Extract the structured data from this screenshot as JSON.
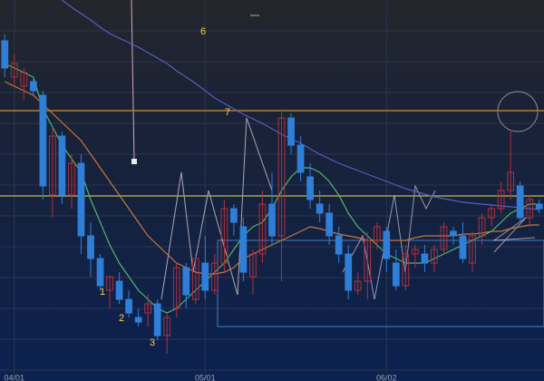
{
  "chart_data": {
    "type": "candlestick",
    "xlim": [
      -0.5,
      56.5
    ],
    "ylim": [
      0,
      420
    ],
    "xticks": [
      {
        "value": 1,
        "label": "04/01"
      },
      {
        "value": 21,
        "label": "05/01"
      },
      {
        "value": 40,
        "label": "06/02"
      }
    ],
    "grid": true,
    "up_color": "#b0303c",
    "down_color": "#2f7fd8",
    "candles": [
      [
        375,
        382,
        335,
        345
      ],
      [
        335,
        360,
        325,
        350
      ],
      [
        325,
        345,
        310,
        340
      ],
      [
        330,
        335,
        315,
        320
      ],
      [
        315,
        320,
        200,
        215
      ],
      [
        205,
        280,
        180,
        270
      ],
      [
        270,
        275,
        195,
        205
      ],
      [
        205,
        250,
        190,
        240
      ],
      [
        240,
        250,
        140,
        160
      ],
      [
        160,
        175,
        115,
        135
      ],
      [
        135,
        140,
        100,
        105
      ],
      [
        100,
        115,
        80,
        115
      ],
      [
        110,
        120,
        85,
        90
      ],
      [
        90,
        100,
        70,
        75
      ],
      [
        70,
        80,
        60,
        65
      ],
      [
        75,
        95,
        60,
        85
      ],
      [
        85,
        90,
        45,
        50
      ],
      [
        50,
        75,
        30,
        70
      ],
      [
        80,
        130,
        70,
        125
      ],
      [
        125,
        130,
        80,
        95
      ],
      [
        90,
        140,
        85,
        135
      ],
      [
        130,
        160,
        90,
        100
      ],
      [
        100,
        140,
        95,
        130
      ],
      [
        130,
        200,
        120,
        190
      ],
      [
        190,
        195,
        160,
        175
      ],
      [
        170,
        180,
        110,
        120
      ],
      [
        115,
        145,
        95,
        140
      ],
      [
        140,
        210,
        130,
        195
      ],
      [
        195,
        230,
        150,
        160
      ],
      [
        160,
        300,
        110,
        290
      ],
      [
        290,
        295,
        250,
        260
      ],
      [
        260,
        270,
        220,
        230
      ],
      [
        225,
        240,
        190,
        200
      ],
      [
        195,
        210,
        175,
        185
      ],
      [
        185,
        195,
        150,
        160
      ],
      [
        160,
        170,
        130,
        140
      ],
      [
        140,
        150,
        90,
        100
      ],
      [
        100,
        120,
        95,
        110
      ],
      [
        110,
        165,
        90,
        155
      ],
      [
        155,
        175,
        145,
        170
      ],
      [
        165,
        170,
        120,
        135
      ],
      [
        130,
        145,
        100,
        105
      ],
      [
        105,
        150,
        100,
        140
      ],
      [
        140,
        150,
        125,
        145
      ],
      [
        140,
        150,
        120,
        130
      ],
      [
        130,
        150,
        120,
        145
      ],
      [
        145,
        175,
        140,
        170
      ],
      [
        165,
        170,
        150,
        160
      ],
      [
        160,
        175,
        130,
        135
      ],
      [
        130,
        165,
        120,
        160
      ],
      [
        160,
        185,
        150,
        180
      ],
      [
        180,
        195,
        170,
        190
      ],
      [
        190,
        220,
        185,
        210
      ],
      [
        210,
        275,
        200,
        230
      ],
      [
        215,
        220,
        175,
        180
      ],
      [
        180,
        205,
        170,
        200
      ],
      [
        195,
        200,
        185,
        190
      ]
    ],
    "series": [
      {
        "color": "#4fb86a",
        "values": [
          350,
          345,
          340,
          335,
          300,
          280,
          260,
          245,
          230,
          200,
          175,
          150,
          130,
          115,
          100,
          90,
          80,
          75,
          80,
          90,
          100,
          110,
          120,
          130,
          145,
          160,
          170,
          175,
          190,
          210,
          225,
          235,
          235,
          230,
          220,
          205,
          185,
          170,
          160,
          150,
          140,
          135,
          130,
          130,
          130,
          135,
          140,
          145,
          150,
          155,
          160,
          165,
          175,
          185,
          190,
          195,
          195
        ]
      },
      {
        "color": "#c8783c",
        "values": [
          330,
          325,
          320,
          315,
          305,
          295,
          285,
          275,
          265,
          250,
          235,
          220,
          205,
          190,
          175,
          160,
          150,
          140,
          130,
          125,
          120,
          118,
          118,
          120,
          125,
          135,
          140,
          145,
          150,
          155,
          160,
          165,
          170,
          168,
          165,
          162,
          160,
          158,
          155,
          155,
          155,
          155,
          155,
          158,
          160,
          160,
          160,
          160,
          162,
          162,
          163,
          165,
          165,
          168,
          170,
          172,
          172
        ]
      },
      {
        "color": "#5a5cc0",
        "values": [
          null,
          null,
          null,
          null,
          null,
          null,
          420,
          412,
          405,
          398,
          390,
          383,
          378,
          373,
          368,
          362,
          356,
          350,
          342,
          335,
          328,
          320,
          312,
          306,
          300,
          294,
          289,
          284,
          278,
          272,
          267,
          262,
          256,
          250,
          245,
          240,
          236,
          232,
          228,
          224,
          220,
          216,
          212,
          209,
          206,
          203,
          201,
          199,
          197,
          196,
          195,
          194,
          193,
          192,
          191,
          190,
          189
        ]
      }
    ],
    "levels": [
      {
        "value": 298,
        "color": "#a8803a"
      },
      {
        "value": 204,
        "color": "#a8a24a"
      }
    ],
    "annotations": [
      "1",
      "2",
      "3",
      "6",
      "7"
    ]
  }
}
